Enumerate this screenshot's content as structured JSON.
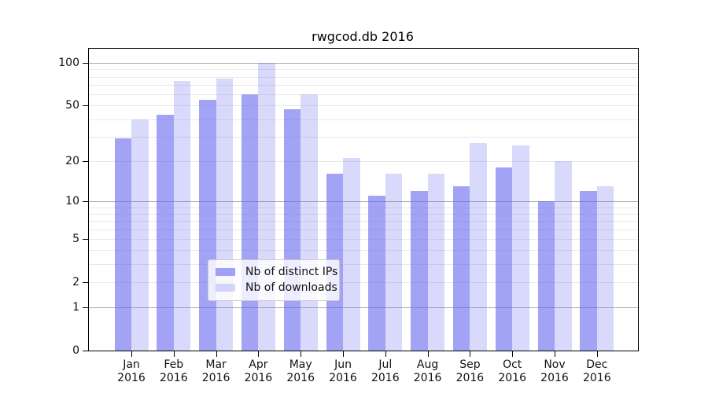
{
  "chart_data": {
    "type": "bar",
    "title": "rwgcod.db 2016",
    "categories": [
      "Jan",
      "Feb",
      "Mar",
      "Apr",
      "May",
      "Jun",
      "Jul",
      "Aug",
      "Sep",
      "Oct",
      "Nov",
      "Dec"
    ],
    "category_year": "2016",
    "series": [
      {
        "name": "Nb of distinct IPs",
        "color": "#6666ee",
        "alpha": 0.6,
        "values": [
          29,
          43,
          55,
          60,
          47,
          16,
          11,
          12,
          13,
          18,
          10,
          12
        ]
      },
      {
        "name": "Nb of downloads",
        "color": "#6666ee",
        "alpha": 0.25,
        "values": [
          40,
          75,
          78,
          100,
          60,
          21,
          16,
          16,
          27,
          26,
          20,
          13
        ]
      }
    ],
    "yscale": "log1p",
    "ylim": [
      0,
      126
    ],
    "yticks": [
      0,
      1,
      2,
      5,
      10,
      20,
      50,
      100
    ],
    "grid_major": [
      1,
      10,
      100
    ],
    "grid_minor": [
      2,
      3,
      4,
      5,
      6,
      7,
      8,
      9,
      20,
      30,
      40,
      50,
      60,
      70,
      80,
      90
    ],
    "legend_position": "lower center",
    "grid": true
  },
  "colors": {
    "grid_major": "#ababab",
    "grid_minor": "#e8e8e8",
    "axis": "#000000"
  }
}
